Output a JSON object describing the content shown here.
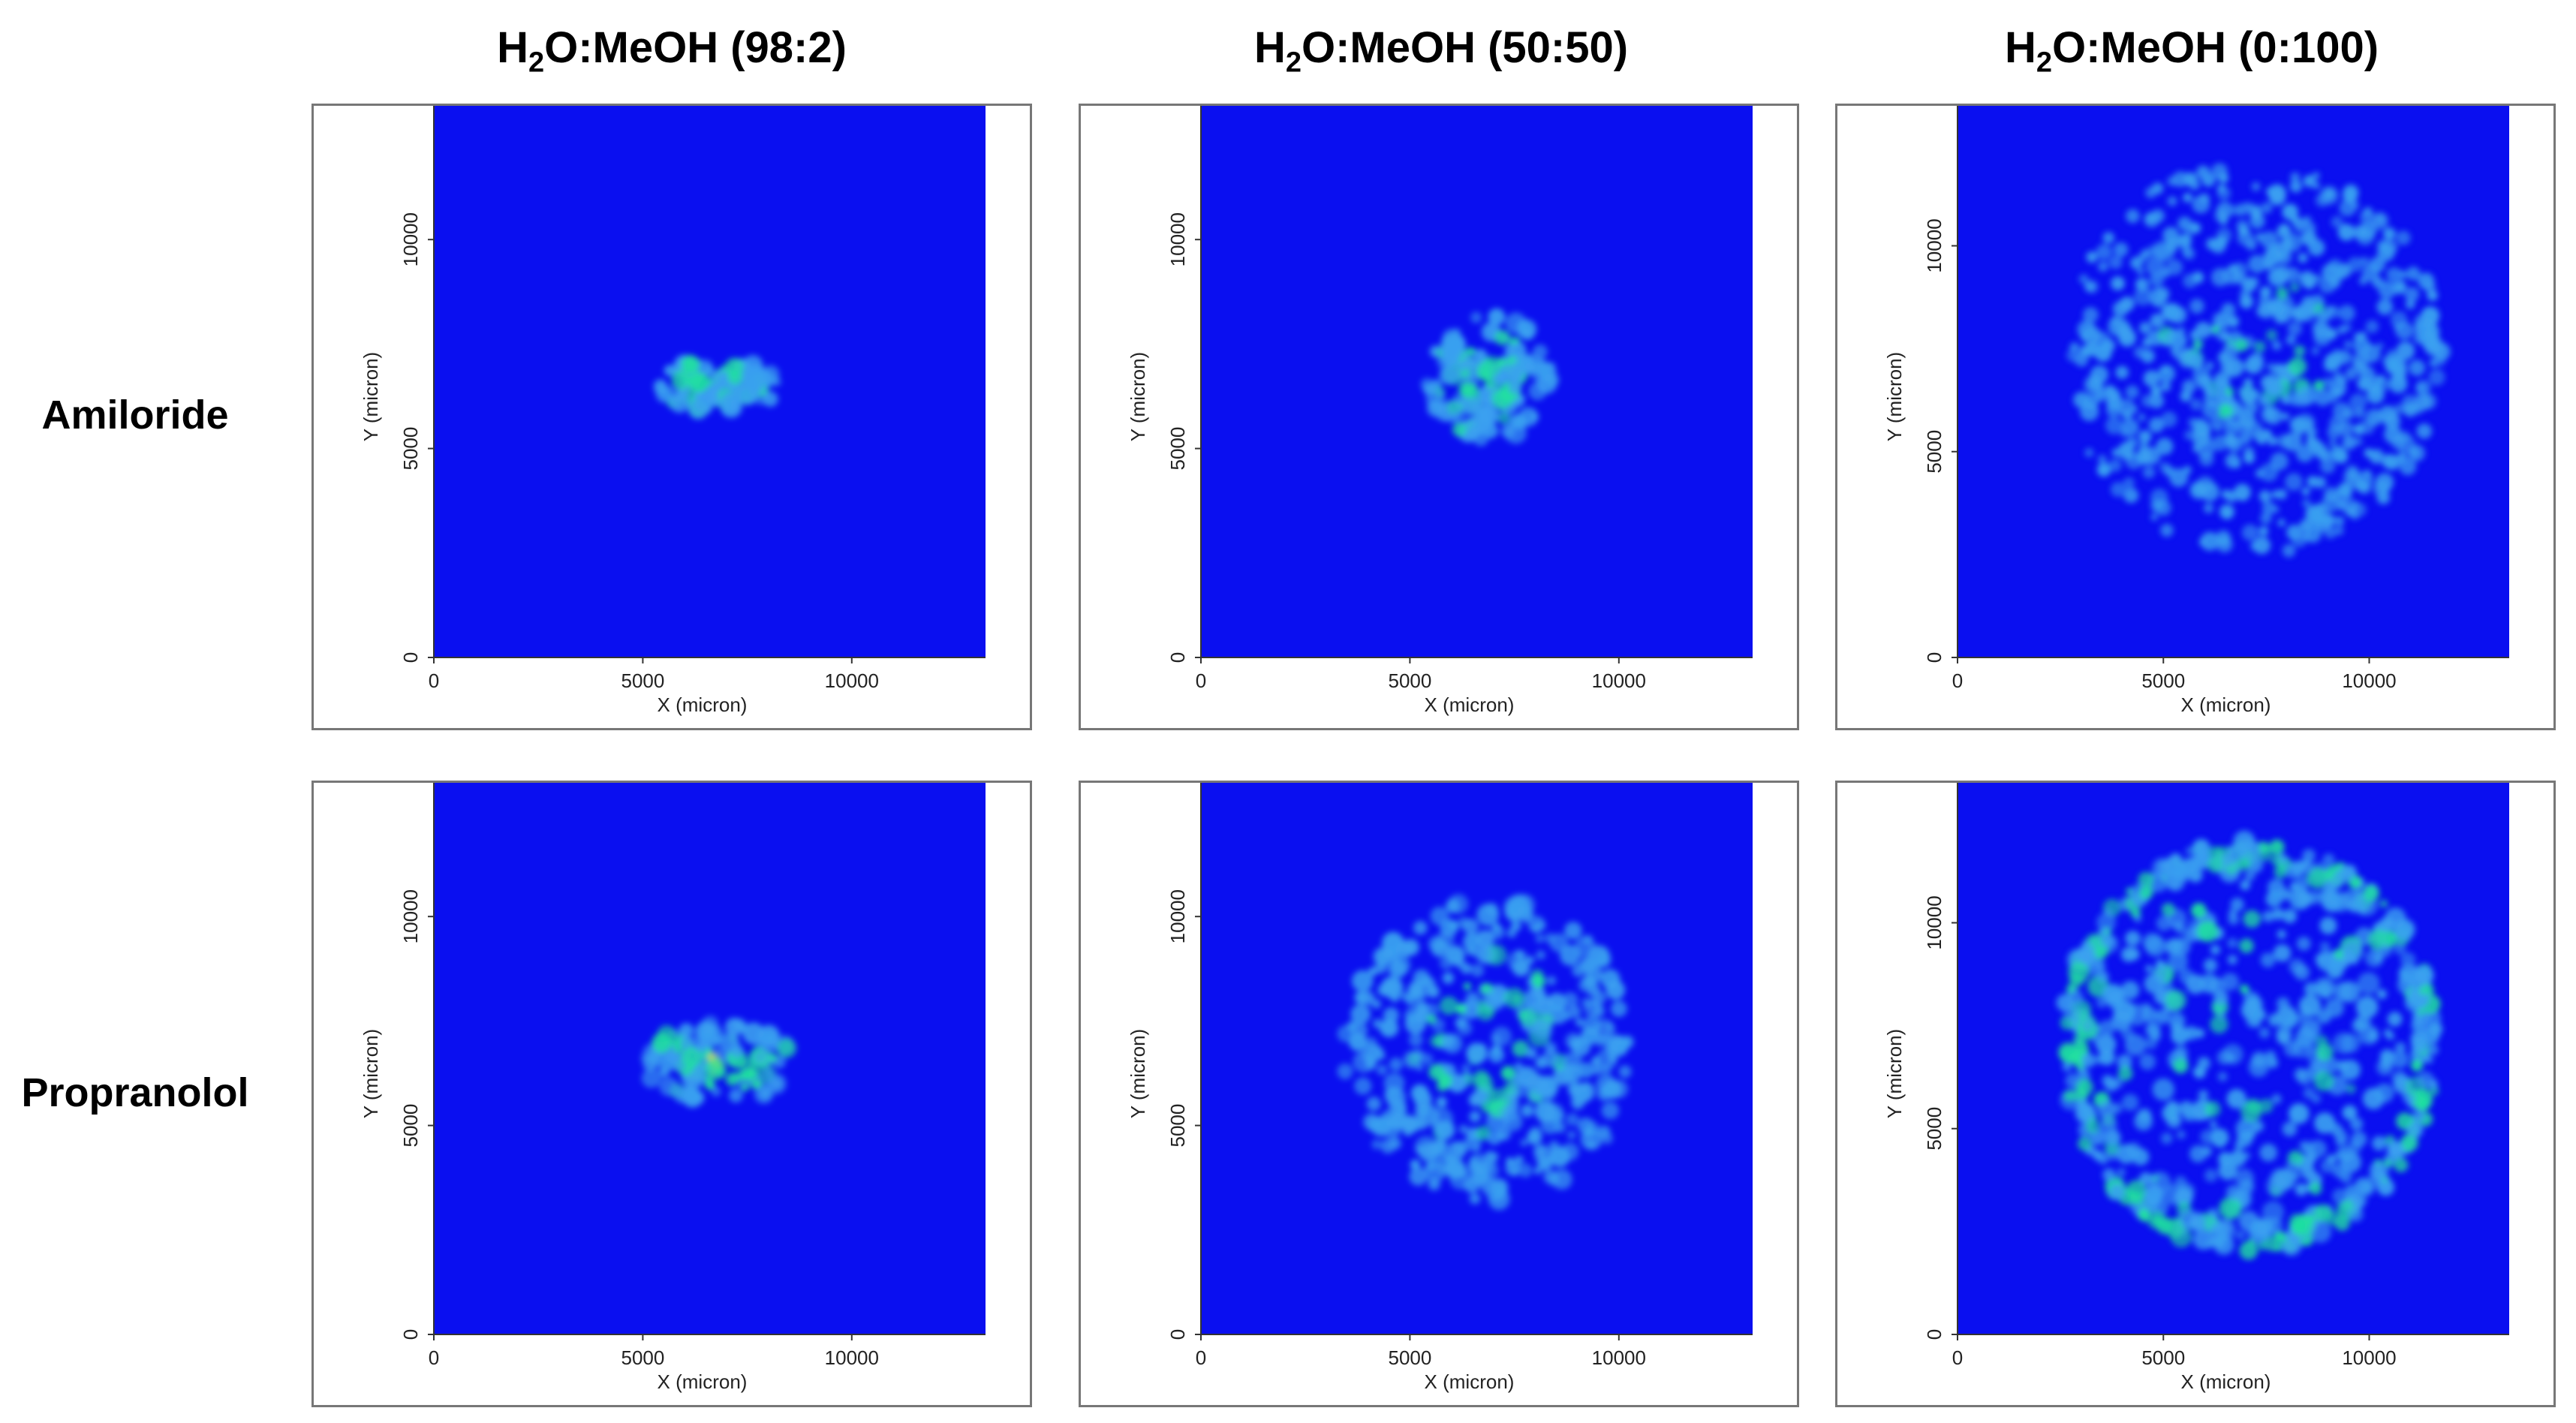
{
  "column_titles": [
    {
      "prefix": "H",
      "sub": "2",
      "suffix": "O:MeOH (98:2)"
    },
    {
      "prefix": "H",
      "sub": "2",
      "suffix": "O:MeOH (50:50)"
    },
    {
      "prefix": "H",
      "sub": "2",
      "suffix": "O:MeOH (0:100)"
    }
  ],
  "row_labels": [
    "Amiloride",
    "Propranolol"
  ],
  "colors": {
    "background_blue": "#0a0ff0",
    "low": "#3aa0f0",
    "mid": "#20e0a0",
    "high": "#f0e020",
    "peak": "#e01010",
    "frame": "#777777"
  },
  "chart_data": [
    {
      "type": "heatmap",
      "row": "Amiloride",
      "column": "H2O:MeOH (98:2)",
      "xlabel": "X (micron)",
      "ylabel": "Y (micron)",
      "xticks": [
        0,
        5000,
        10000
      ],
      "yticks": [
        0,
        5000,
        10000
      ],
      "xlim": [
        0,
        13200
      ],
      "ylim": [
        0,
        13200
      ],
      "blobs": [
        {
          "x": 6800,
          "y": 6500,
          "rx": 1500,
          "ry": 600,
          "intensity": 0.9
        }
      ]
    },
    {
      "type": "heatmap",
      "row": "Amiloride",
      "column": "H2O:MeOH (50:50)",
      "xlabel": "X (micron)",
      "ylabel": "Y (micron)",
      "xticks": [
        0,
        5000,
        10000
      ],
      "yticks": [
        0,
        5000,
        10000
      ],
      "xlim": [
        0,
        13200
      ],
      "ylim": [
        0,
        13200
      ],
      "blobs": [
        {
          "x": 6900,
          "y": 6700,
          "rx": 1500,
          "ry": 1500,
          "intensity": 0.8
        }
      ]
    },
    {
      "type": "heatmap",
      "row": "Amiloride",
      "column": "H2O:MeOH (0:100)",
      "xlabel": "X (micron)",
      "ylabel": "Y (micron)",
      "xticks": [
        0,
        5000,
        10000
      ],
      "yticks": [
        0,
        5000,
        10000
      ],
      "xlim": [
        0,
        13400
      ],
      "ylim": [
        0,
        13400
      ],
      "blobs": [
        {
          "x": 7200,
          "y": 7300,
          "rx": 4600,
          "ry": 4800,
          "intensity": 0.5
        }
      ]
    },
    {
      "type": "heatmap",
      "row": "Propranolol",
      "column": "H2O:MeOH (98:2)",
      "xlabel": "X (micron)",
      "ylabel": "Y (micron)",
      "xticks": [
        0,
        5000,
        10000
      ],
      "yticks": [
        0,
        5000,
        10000
      ],
      "xlim": [
        0,
        13200
      ],
      "ylim": [
        0,
        13200
      ],
      "blobs": [
        {
          "x": 6800,
          "y": 6500,
          "rx": 1800,
          "ry": 1000,
          "intensity": 0.9
        }
      ]
    },
    {
      "type": "heatmap",
      "row": "Propranolol",
      "column": "H2O:MeOH (50:50)",
      "xlabel": "X (micron)",
      "ylabel": "Y (micron)",
      "xticks": [
        0,
        5000,
        10000
      ],
      "yticks": [
        0,
        5000,
        10000
      ],
      "xlim": [
        0,
        13200
      ],
      "ylim": [
        0,
        13200
      ],
      "blobs": [
        {
          "x": 6900,
          "y": 6800,
          "rx": 3500,
          "ry": 3600,
          "intensity": 0.6
        }
      ]
    },
    {
      "type": "heatmap",
      "row": "Propranolol",
      "column": "H2O:MeOH (0:100)",
      "xlabel": "X (micron)",
      "ylabel": "Y (micron)",
      "xticks": [
        0,
        5000,
        10000
      ],
      "yticks": [
        0,
        5000,
        10000
      ],
      "xlim": [
        0,
        13400
      ],
      "ylim": [
        0,
        13400
      ],
      "blobs": [
        {
          "x": 7100,
          "y": 7000,
          "rx": 4600,
          "ry": 5000,
          "intensity": 0.7,
          "ring": true
        }
      ]
    }
  ]
}
